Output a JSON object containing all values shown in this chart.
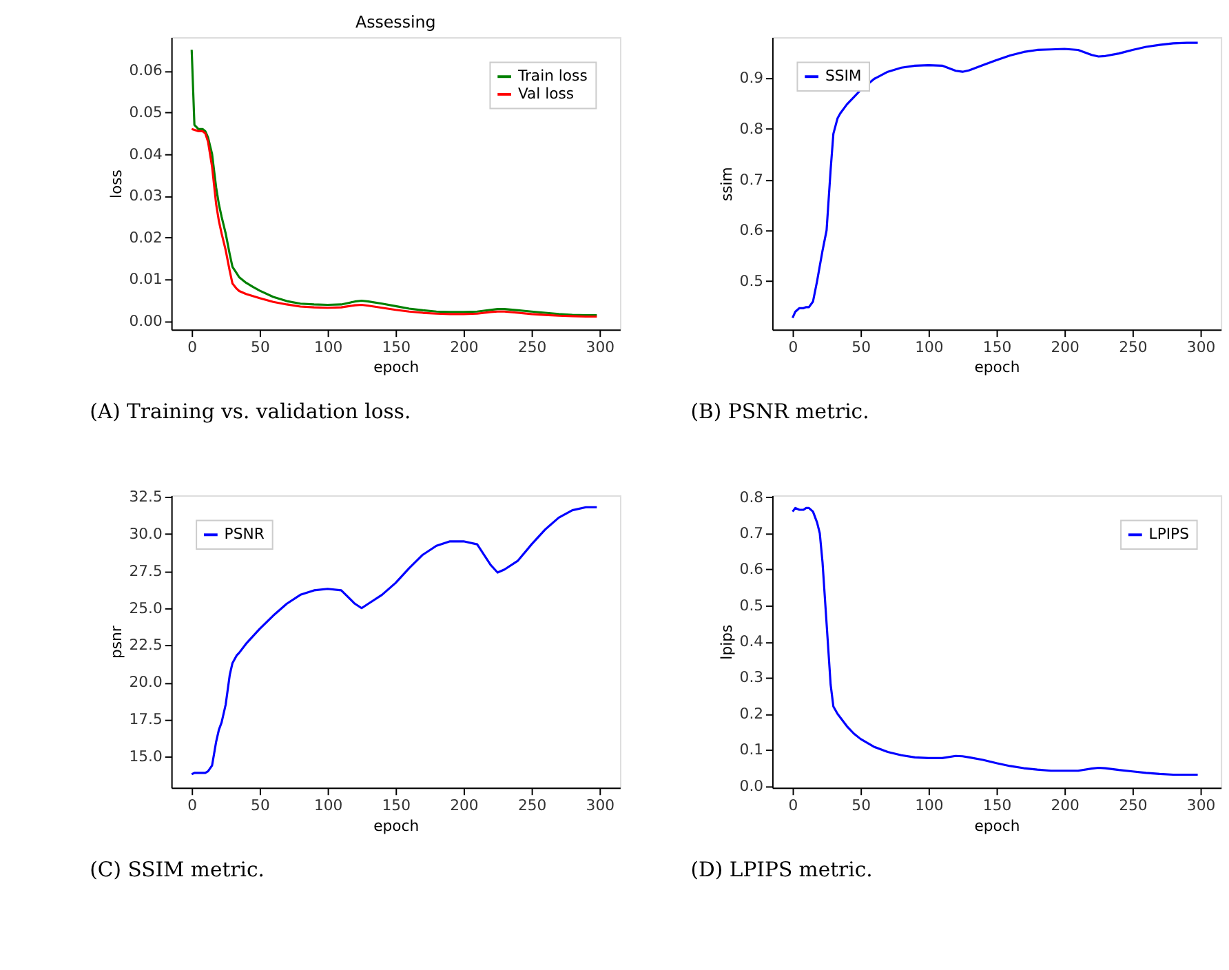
{
  "chart_data": [
    {
      "type": "line",
      "title": "Assessing",
      "xlabel": "epoch",
      "ylabel": "loss",
      "legend": "top right",
      "x": [
        0,
        2,
        5,
        8,
        10,
        12,
        15,
        18,
        20,
        22,
        25,
        28,
        30,
        33,
        35,
        40,
        45,
        50,
        60,
        70,
        80,
        90,
        100,
        110,
        120,
        125,
        130,
        140,
        150,
        160,
        170,
        180,
        190,
        200,
        210,
        220,
        225,
        230,
        240,
        250,
        260,
        270,
        280,
        290,
        298
      ],
      "series": [
        {
          "name": "Train loss",
          "color": "#008000",
          "values": [
            0.065,
            0.047,
            0.046,
            0.046,
            0.0455,
            0.044,
            0.04,
            0.032,
            0.028,
            0.025,
            0.021,
            0.016,
            0.013,
            0.0115,
            0.0105,
            0.0092,
            0.0082,
            0.0073,
            0.0058,
            0.0048,
            0.0042,
            0.004,
            0.0039,
            0.004,
            0.0047,
            0.0049,
            0.0047,
            0.0042,
            0.0036,
            0.003,
            0.0026,
            0.0023,
            0.0022,
            0.0022,
            0.0023,
            0.0027,
            0.0029,
            0.0029,
            0.0026,
            0.0023,
            0.002,
            0.0017,
            0.0015,
            0.0014,
            0.0014
          ]
        },
        {
          "name": "Val loss",
          "color": "#ff0000",
          "values": [
            0.046,
            0.0458,
            0.0455,
            0.0455,
            0.045,
            0.043,
            0.037,
            0.028,
            0.024,
            0.021,
            0.017,
            0.012,
            0.009,
            0.0078,
            0.0072,
            0.0065,
            0.006,
            0.0055,
            0.0046,
            0.004,
            0.0035,
            0.0033,
            0.0032,
            0.0033,
            0.0038,
            0.0039,
            0.0037,
            0.0032,
            0.0027,
            0.0023,
            0.002,
            0.0018,
            0.0017,
            0.0017,
            0.0018,
            0.0022,
            0.0023,
            0.0023,
            0.002,
            0.0017,
            0.0015,
            0.0013,
            0.0012,
            0.0011,
            0.0011
          ]
        }
      ],
      "xlim": [
        -15,
        315
      ],
      "xticks": [
        0,
        50,
        100,
        150,
        200,
        250,
        300
      ],
      "ylim": [
        -0.002,
        0.068
      ],
      "yticks": [
        {
          "value": 0,
          "label": "0.00"
        },
        {
          "value": 0.01,
          "label": "0.01"
        },
        {
          "value": 0.02,
          "label": "0.02"
        },
        {
          "value": 0.03,
          "label": "0.03"
        },
        {
          "value": 0.04,
          "label": "0.04"
        },
        {
          "value": 0.05,
          "label": "0.05"
        },
        {
          "value": 0.06,
          "label": "0.06"
        }
      ],
      "annotations": [
        "(A) Training vs. validation loss."
      ]
    },
    {
      "type": "line",
      "xlabel": "epoch",
      "ylabel": "ssim",
      "legend": "top left",
      "x": [
        0,
        2,
        5,
        8,
        10,
        12,
        15,
        18,
        20,
        22,
        25,
        28,
        30,
        33,
        35,
        40,
        45,
        50,
        60,
        70,
        80,
        90,
        100,
        110,
        120,
        125,
        130,
        140,
        150,
        160,
        170,
        180,
        190,
        200,
        210,
        220,
        225,
        230,
        240,
        250,
        260,
        270,
        280,
        290,
        298
      ],
      "series": [
        {
          "name": "SSIM",
          "color": "#0000ff",
          "values": [
            0.428,
            0.44,
            0.447,
            0.447,
            0.449,
            0.449,
            0.46,
            0.5,
            0.53,
            0.56,
            0.6,
            0.72,
            0.79,
            0.82,
            0.83,
            0.848,
            0.862,
            0.876,
            0.898,
            0.912,
            0.92,
            0.924,
            0.925,
            0.924,
            0.914,
            0.912,
            0.915,
            0.925,
            0.935,
            0.944,
            0.951,
            0.955,
            0.956,
            0.957,
            0.955,
            0.945,
            0.942,
            0.943,
            0.948,
            0.955,
            0.961,
            0.965,
            0.968,
            0.969,
            0.969
          ]
        }
      ],
      "xlim": [
        -15,
        315
      ],
      "xticks": [
        0,
        50,
        100,
        150,
        200,
        250,
        300
      ],
      "ylim": [
        0.405,
        0.98
      ],
      "yticks": [
        0.5,
        0.6,
        0.7,
        0.8,
        0.9
      ],
      "annotations": [
        "(B) PSNR metric."
      ]
    },
    {
      "type": "line",
      "xlabel": "epoch",
      "ylabel": "psnr",
      "legend": "top left",
      "x": [
        0,
        2,
        5,
        8,
        10,
        12,
        15,
        18,
        20,
        22,
        25,
        28,
        30,
        33,
        35,
        40,
        45,
        50,
        60,
        70,
        80,
        90,
        100,
        110,
        120,
        125,
        130,
        140,
        150,
        160,
        170,
        180,
        190,
        200,
        210,
        220,
        225,
        230,
        240,
        250,
        260,
        270,
        280,
        290,
        298
      ],
      "series": [
        {
          "name": "PSNR",
          "color": "#0000ff",
          "values": [
            13.8,
            13.9,
            13.9,
            13.9,
            13.9,
            14.0,
            14.4,
            16.0,
            16.8,
            17.3,
            18.5,
            20.5,
            21.3,
            21.8,
            22.0,
            22.6,
            23.1,
            23.6,
            24.5,
            25.3,
            25.9,
            26.2,
            26.3,
            26.2,
            25.3,
            25.0,
            25.3,
            25.9,
            26.7,
            27.7,
            28.6,
            29.2,
            29.5,
            29.5,
            29.3,
            27.9,
            27.4,
            27.6,
            28.2,
            29.3,
            30.3,
            31.1,
            31.6,
            31.8,
            31.8
          ]
        }
      ],
      "xlim": [
        -15,
        315
      ],
      "xticks": [
        0,
        50,
        100,
        150,
        200,
        250,
        300
      ],
      "ylim": [
        12.9,
        32.6
      ],
      "yticks": [
        {
          "value": 15,
          "label": "15.0"
        },
        17.5,
        {
          "value": 20,
          "label": "20.0"
        },
        22.5,
        {
          "value": 25,
          "label": "25.0"
        },
        27.5,
        {
          "value": 30,
          "label": "30.0"
        },
        32.5
      ],
      "annotations": [
        "(C) SSIM metric."
      ]
    },
    {
      "type": "line",
      "xlabel": "epoch",
      "ylabel": "lpips",
      "legend": "top right",
      "x": [
        0,
        2,
        5,
        8,
        10,
        12,
        15,
        18,
        20,
        22,
        25,
        28,
        30,
        33,
        35,
        40,
        45,
        50,
        60,
        70,
        80,
        90,
        100,
        110,
        120,
        125,
        130,
        140,
        150,
        160,
        170,
        180,
        190,
        200,
        210,
        220,
        225,
        230,
        240,
        250,
        260,
        270,
        280,
        290,
        298
      ],
      "series": [
        {
          "name": "LPIPS",
          "color": "#0000ff",
          "values": [
            0.76,
            0.77,
            0.765,
            0.765,
            0.77,
            0.77,
            0.76,
            0.73,
            0.7,
            0.62,
            0.45,
            0.28,
            0.22,
            0.2,
            0.19,
            0.165,
            0.145,
            0.13,
            0.108,
            0.094,
            0.085,
            0.079,
            0.077,
            0.077,
            0.083,
            0.082,
            0.079,
            0.072,
            0.063,
            0.055,
            0.049,
            0.045,
            0.042,
            0.042,
            0.042,
            0.048,
            0.05,
            0.049,
            0.044,
            0.04,
            0.036,
            0.033,
            0.031,
            0.031,
            0.031
          ]
        }
      ],
      "xlim": [
        -15,
        315
      ],
      "xticks": [
        0,
        50,
        100,
        150,
        200,
        250,
        300
      ],
      "ylim": [
        -0.005,
        0.805
      ],
      "yticks": [
        {
          "value": 0,
          "label": "0.0"
        },
        0.1,
        0.2,
        0.3,
        0.4,
        0.5,
        0.6,
        0.7,
        0.8
      ],
      "annotations": [
        "(D) LPIPS metric."
      ]
    }
  ]
}
